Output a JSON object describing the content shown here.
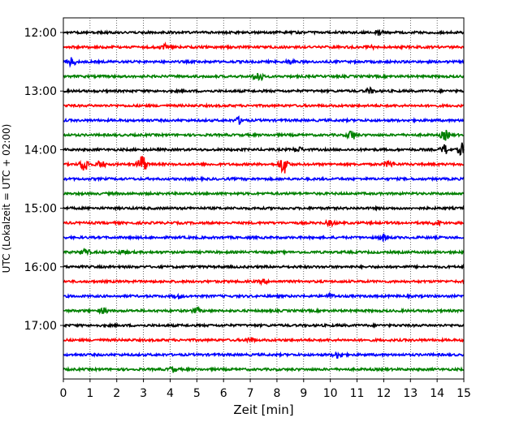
{
  "chart_data": {
    "type": "line",
    "title": "",
    "xlabel": "Zeit  [min]",
    "ylabel": "UTC (Lokalzeit = UTC + 02:00)",
    "xlim": [
      0,
      15
    ],
    "x_ticks": [
      0,
      1,
      2,
      3,
      4,
      5,
      6,
      7,
      8,
      9,
      10,
      11,
      12,
      13,
      14,
      15
    ],
    "x_tick_labels": [
      "0",
      "1",
      "2",
      "3",
      "4",
      "5",
      "6",
      "7",
      "8",
      "9",
      "10",
      "11",
      "12",
      "13",
      "14",
      "15"
    ],
    "y_ticks": [
      "12:00",
      "13:00",
      "14:00",
      "15:00",
      "16:00",
      "17:00"
    ],
    "row_interval_minutes": 15,
    "grid": "vertical dotted",
    "legend": "none",
    "colors": [
      "#000000",
      "#ff0000",
      "#0000ff",
      "#008000"
    ],
    "traces": [
      {
        "start": "12:00",
        "events": [
          {
            "x": 11.8,
            "amp": 3
          }
        ]
      },
      {
        "start": "12:15",
        "events": [
          {
            "x": 3.8,
            "amp": 3
          },
          {
            "x": 11.5,
            "amp": 2
          }
        ]
      },
      {
        "start": "12:30",
        "events": [
          {
            "x": 0.3,
            "amp": 5
          },
          {
            "x": 8.5,
            "amp": 2
          }
        ]
      },
      {
        "start": "12:45",
        "events": [
          {
            "x": 7.3,
            "amp": 7
          }
        ]
      },
      {
        "start": "13:00",
        "events": [
          {
            "x": 11.5,
            "amp": 3
          }
        ]
      },
      {
        "start": "13:15",
        "events": []
      },
      {
        "start": "13:30",
        "events": [
          {
            "x": 6.6,
            "amp": 4
          }
        ]
      },
      {
        "start": "13:45",
        "events": [
          {
            "x": 10.8,
            "amp": 6
          },
          {
            "x": 14.3,
            "amp": 6
          }
        ]
      },
      {
        "start": "14:00",
        "events": [
          {
            "x": 8.8,
            "amp": 3
          },
          {
            "x": 14.3,
            "amp": 6
          },
          {
            "x": 14.95,
            "amp": 8
          }
        ]
      },
      {
        "start": "14:15",
        "events": [
          {
            "x": 0.8,
            "amp": 9
          },
          {
            "x": 1.4,
            "amp": 4
          },
          {
            "x": 2.95,
            "amp": 12
          },
          {
            "x": 8.25,
            "amp": 12
          },
          {
            "x": 12.2,
            "amp": 4
          }
        ]
      },
      {
        "start": "14:30",
        "events": []
      },
      {
        "start": "14:45",
        "events": []
      },
      {
        "start": "15:00",
        "events": []
      },
      {
        "start": "15:15",
        "events": [
          {
            "x": 10.0,
            "amp": 3
          },
          {
            "x": 14.0,
            "amp": 3
          }
        ]
      },
      {
        "start": "15:30",
        "events": [
          {
            "x": 12.0,
            "amp": 4
          }
        ]
      },
      {
        "start": "15:45",
        "events": [
          {
            "x": 0.8,
            "amp": 4
          },
          {
            "x": 2.2,
            "amp": 2
          }
        ]
      },
      {
        "start": "16:00",
        "events": []
      },
      {
        "start": "16:15",
        "events": [
          {
            "x": 7.5,
            "amp": 2
          }
        ]
      },
      {
        "start": "16:30",
        "events": [
          {
            "x": 4.3,
            "amp": 2
          },
          {
            "x": 10.0,
            "amp": 2
          }
        ]
      },
      {
        "start": "16:45",
        "events": [
          {
            "x": 1.5,
            "amp": 3
          },
          {
            "x": 5.0,
            "amp": 3
          }
        ]
      },
      {
        "start": "17:00",
        "events": []
      },
      {
        "start": "17:15",
        "events": [
          {
            "x": 7.0,
            "amp": 3
          }
        ]
      },
      {
        "start": "17:30",
        "events": [
          {
            "x": 10.3,
            "amp": 4
          }
        ]
      },
      {
        "start": "17:45",
        "events": [
          {
            "x": 4.1,
            "amp": 3
          }
        ]
      }
    ]
  }
}
